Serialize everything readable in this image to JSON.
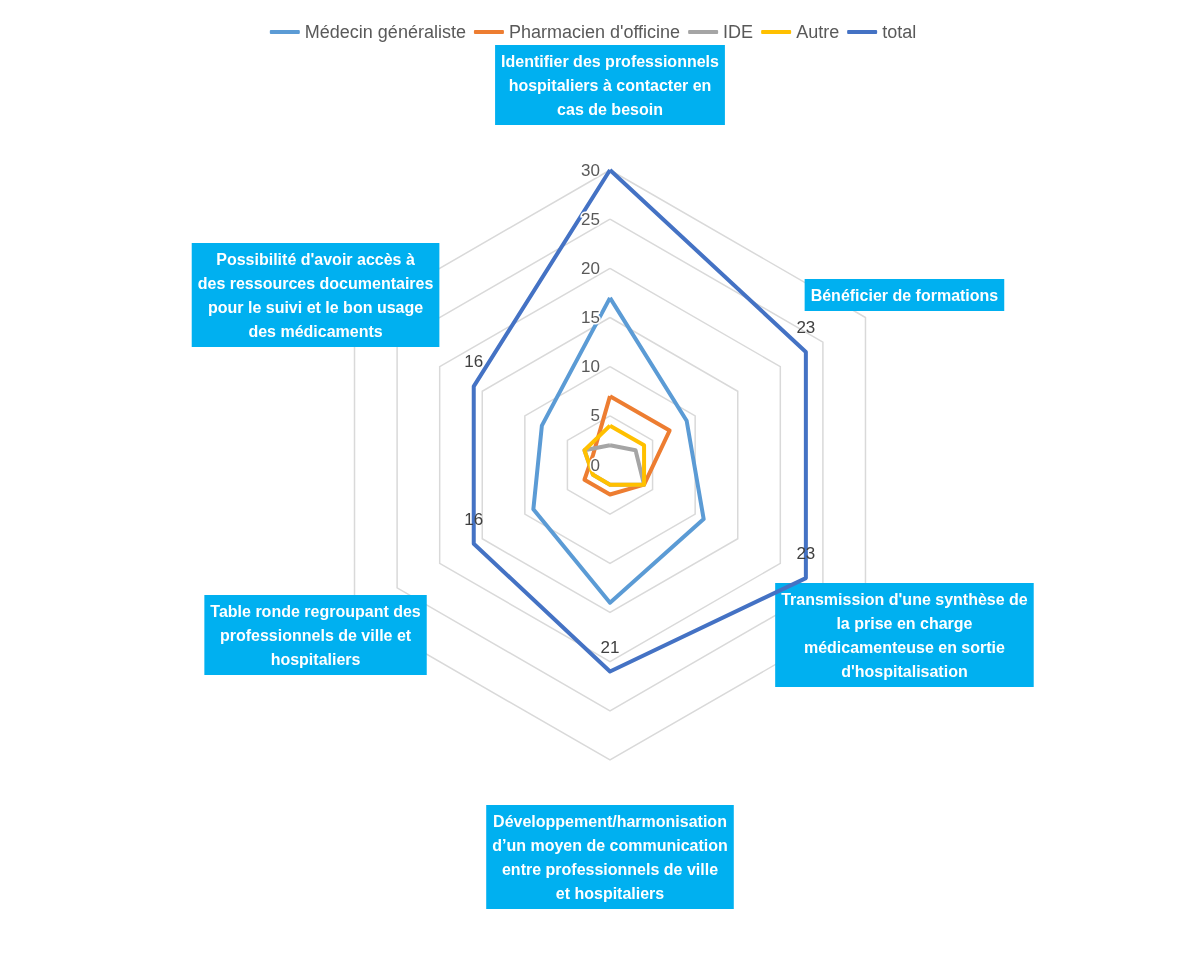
{
  "chart_data": {
    "type": "radar",
    "categories": [
      "Identifier des professionnels hospitaliers à contacter en cas de besoin",
      "Bénéficier de formations",
      "Transmission d'une synthèse de la prise en charge médicamenteuse en sortie d'hospitalisation",
      "Développement/harmonisation d’un moyen de communication entre professionnels de ville et hospitaliers",
      "Table ronde regroupant des professionnels de ville et hospitaliers",
      "Possibilité d'avoir accès à des ressources documentaires pour le suivi et le bon usage des médicaments"
    ],
    "series": [
      {
        "name": "Médecin généraliste",
        "color": "#5b9bd5",
        "values": [
          17,
          9,
          11,
          14,
          9,
          8
        ]
      },
      {
        "name": "Pharmacien d'officine",
        "color": "#ed7d31",
        "values": [
          7,
          7,
          4,
          3,
          3,
          2
        ]
      },
      {
        "name": "IDE",
        "color": "#a5a5a5",
        "values": [
          2,
          3,
          4,
          2,
          2,
          3
        ]
      },
      {
        "name": "Autre",
        "color": "#ffc000",
        "values": [
          4,
          4,
          4,
          2,
          2,
          3
        ]
      },
      {
        "name": "total",
        "color": "#4472c4",
        "values": [
          30,
          23,
          23,
          21,
          16,
          16
        ],
        "value_labels": [
          null,
          "23",
          "23",
          "21",
          "16",
          "16"
        ]
      }
    ],
    "ylim": [
      0,
      30
    ],
    "yticks": [
      0,
      5,
      10,
      15,
      20,
      25,
      30
    ],
    "grid": true,
    "legend": "top",
    "marker": "none"
  }
}
